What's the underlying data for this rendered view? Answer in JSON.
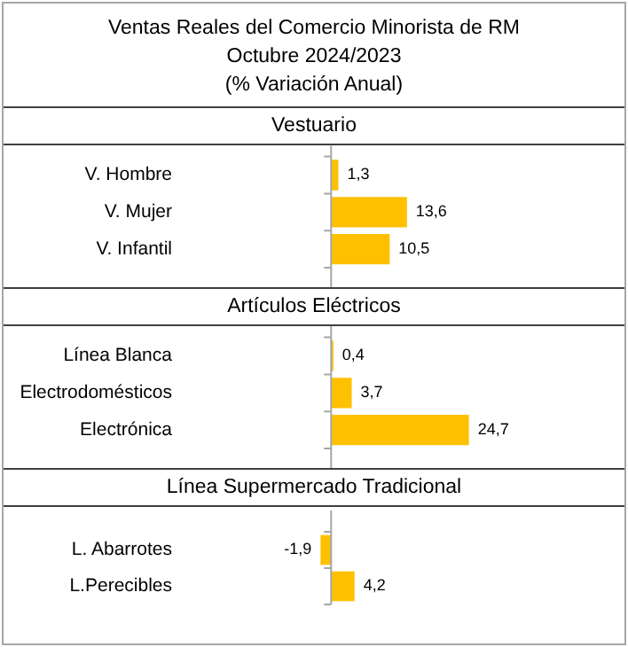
{
  "chart_data": [
    {
      "type": "bar",
      "orientation": "horizontal",
      "title": "Ventas Reales del Comercio Minorista de RM\nOctubre 2024/2023\n(% Variación Anual)",
      "subtitle": "Vestuario",
      "categories": [
        "V. Hombre",
        "V. Mujer",
        "V. Infantil"
      ],
      "values": [
        1.3,
        13.6,
        10.5
      ],
      "value_labels": [
        "1,3",
        "13,6",
        "10,5"
      ],
      "color": "#ffc000",
      "legend": false,
      "grid": false
    },
    {
      "type": "bar",
      "orientation": "horizontal",
      "subtitle": "Artículos Eléctricos",
      "categories": [
        "Línea Blanca",
        "Electrodomésticos",
        "Electrónica"
      ],
      "values": [
        0.4,
        3.7,
        24.7
      ],
      "value_labels": [
        "0,4",
        "3,7",
        "24,7"
      ],
      "color": "#ffc000",
      "legend": false,
      "grid": false
    },
    {
      "type": "bar",
      "orientation": "horizontal",
      "subtitle": "Línea Supermercado Tradicional",
      "categories": [
        "L. Abarrotes",
        "L.Perecibles"
      ],
      "values": [
        -1.9,
        4.2
      ],
      "value_labels": [
        "-1,9",
        "4,2"
      ],
      "color": "#ffc000",
      "legend": false,
      "grid": false
    }
  ]
}
